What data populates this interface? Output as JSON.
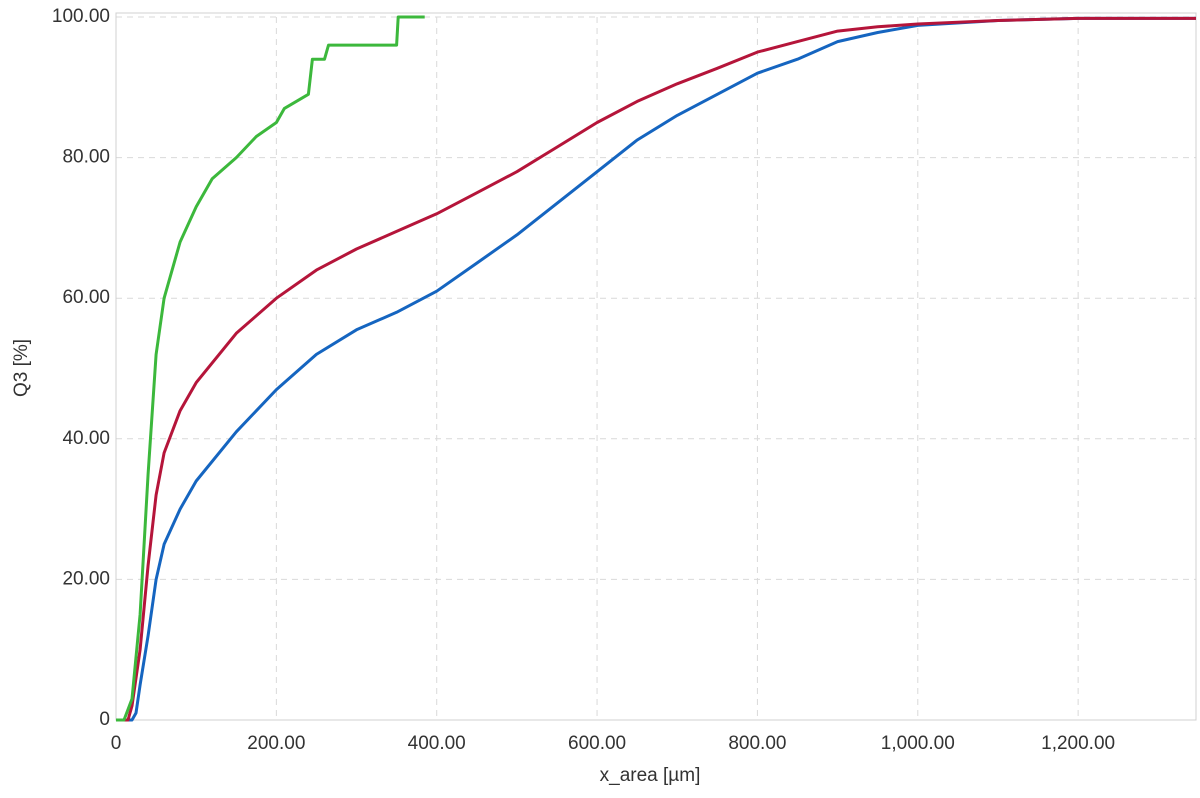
{
  "chart_data": {
    "type": "line",
    "xlabel": "x_area [µm]",
    "ylabel": "Q3 [%]",
    "xlim": [
      0,
      1347
    ],
    "ylim": [
      0,
      100
    ],
    "xticks": [
      0,
      {
        "value": 200,
        "label": "200.00"
      },
      {
        "value": 400,
        "label": "400.00"
      },
      {
        "value": 600,
        "label": "600.00"
      },
      {
        "value": 800,
        "label": "800.00"
      },
      {
        "value": 1000,
        "label": "1,000.00"
      },
      {
        "value": 1200,
        "label": "1,200.00"
      }
    ],
    "yticks": [
      0,
      {
        "value": 20,
        "label": "20.00"
      },
      {
        "value": 40,
        "label": "40.00"
      },
      {
        "value": 60,
        "label": "60.00"
      },
      {
        "value": 80,
        "label": "80.00"
      },
      {
        "value": 100,
        "label": "100.00"
      }
    ],
    "grid": true,
    "series": [
      {
        "color": "#1565c0",
        "x": [
          0,
          20,
          25,
          30,
          40,
          50,
          60,
          80,
          100,
          150,
          200,
          250,
          300,
          350,
          400,
          450,
          500,
          550,
          600,
          650,
          700,
          750,
          800,
          850,
          900,
          950,
          1000,
          1100,
          1200,
          1347
        ],
        "values": [
          0,
          0,
          1,
          5,
          12,
          20,
          25,
          30,
          34,
          41,
          47,
          52,
          55.5,
          58,
          61,
          65,
          69,
          73.5,
          78,
          82.5,
          86,
          89,
          92,
          94,
          96.5,
          97.8,
          98.8,
          99.5,
          99.8,
          99.8
        ]
      },
      {
        "color": "#b5153a",
        "x": [
          0,
          15,
          20,
          30,
          40,
          50,
          60,
          80,
          100,
          150,
          200,
          250,
          300,
          350,
          400,
          450,
          500,
          550,
          600,
          650,
          700,
          750,
          800,
          850,
          900,
          950,
          1000,
          1100,
          1200,
          1347
        ],
        "values": [
          0,
          0,
          2,
          10,
          22,
          32,
          38,
          44,
          48,
          55,
          60,
          64,
          67,
          69.5,
          72,
          75,
          78,
          81.5,
          85,
          88,
          90.5,
          92.7,
          95,
          96.5,
          98,
          98.6,
          99,
          99.5,
          99.8,
          99.8
        ]
      },
      {
        "color": "#3cb83c",
        "x": [
          0,
          10,
          20,
          30,
          40,
          50,
          60,
          80,
          100,
          120,
          150,
          175,
          200,
          210,
          240,
          245,
          260,
          265,
          350,
          352,
          385
        ],
        "values": [
          0,
          0,
          3,
          15,
          35,
          52,
          60,
          68,
          73,
          77,
          80,
          83,
          85,
          87,
          89,
          94,
          94,
          96,
          96,
          100,
          100
        ]
      }
    ]
  }
}
